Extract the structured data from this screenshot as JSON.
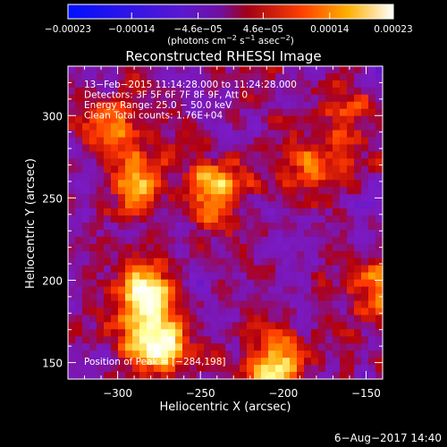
{
  "chart_data": {
    "type": "heatmap",
    "title": "Reconstructed RHESSI Image",
    "xlabel": "Heliocentric X (arcsec)",
    "ylabel": "Heliocentric Y (arcsec)",
    "xlim": [
      -330,
      -140
    ],
    "ylim": [
      140,
      330
    ],
    "xticks": [
      -300,
      -250,
      -200,
      -150
    ],
    "xtick_labels": [
      "−300",
      "−250",
      "−200",
      "−150"
    ],
    "yticks": [
      150,
      200,
      250,
      300
    ],
    "ytick_labels": [
      "150",
      "200",
      "250",
      "300"
    ],
    "colorbar": {
      "range": [
        -0.00023,
        0.00023
      ],
      "tick_values": [
        -0.00023,
        -0.00014,
        -4.6e-05,
        4.6e-05,
        0.00014,
        0.00023
      ],
      "tick_labels": [
        "−0.00023",
        "−0.00014",
        "−4.6e−05",
        "4.6e−05",
        "0.00014",
        "0.00023"
      ],
      "units_prefix": "(photons cm",
      "units_exp1": "−2",
      "units_mid": " s",
      "units_exp2": "−1",
      "units_end": " asec",
      "units_exp3": "−2",
      "units_close": ")"
    },
    "annotations": [
      "13−Feb−2015 11:14:28.000 to 11:24:28.000",
      "Detectors: 3F 5F 6F 7F 8F 9F, Att 0",
      "Energy Range: 25.0 − 50.0 keV",
      "Clean     Total counts: 1.76E+04"
    ],
    "peak_label": "Position of Peak = [−284,198]",
    "peak_position": [
      -284,
      198
    ],
    "hot_regions": [
      {
        "x": -283,
        "y": 190,
        "w": 1.0
      },
      {
        "x": -275,
        "y": 160,
        "w": 0.95
      },
      {
        "x": -240,
        "y": 255,
        "w": 0.8
      },
      {
        "x": -290,
        "y": 260,
        "w": 0.6
      },
      {
        "x": -205,
        "y": 150,
        "w": 0.75
      },
      {
        "x": -185,
        "y": 272,
        "w": 0.55
      },
      {
        "x": -305,
        "y": 295,
        "w": 0.45
      },
      {
        "x": -160,
        "y": 300,
        "w": 0.4
      },
      {
        "x": -145,
        "y": 195,
        "w": 0.55
      }
    ],
    "colormap": [
      "#0000ff",
      "#4a12c8",
      "#7a1bc8",
      "#7c16b0",
      "#b00010",
      "#ff3a00",
      "#ffa000",
      "#ffff90",
      "#ffffff"
    ]
  },
  "footer": {
    "date_label": "6−Aug−2017 14:40"
  }
}
